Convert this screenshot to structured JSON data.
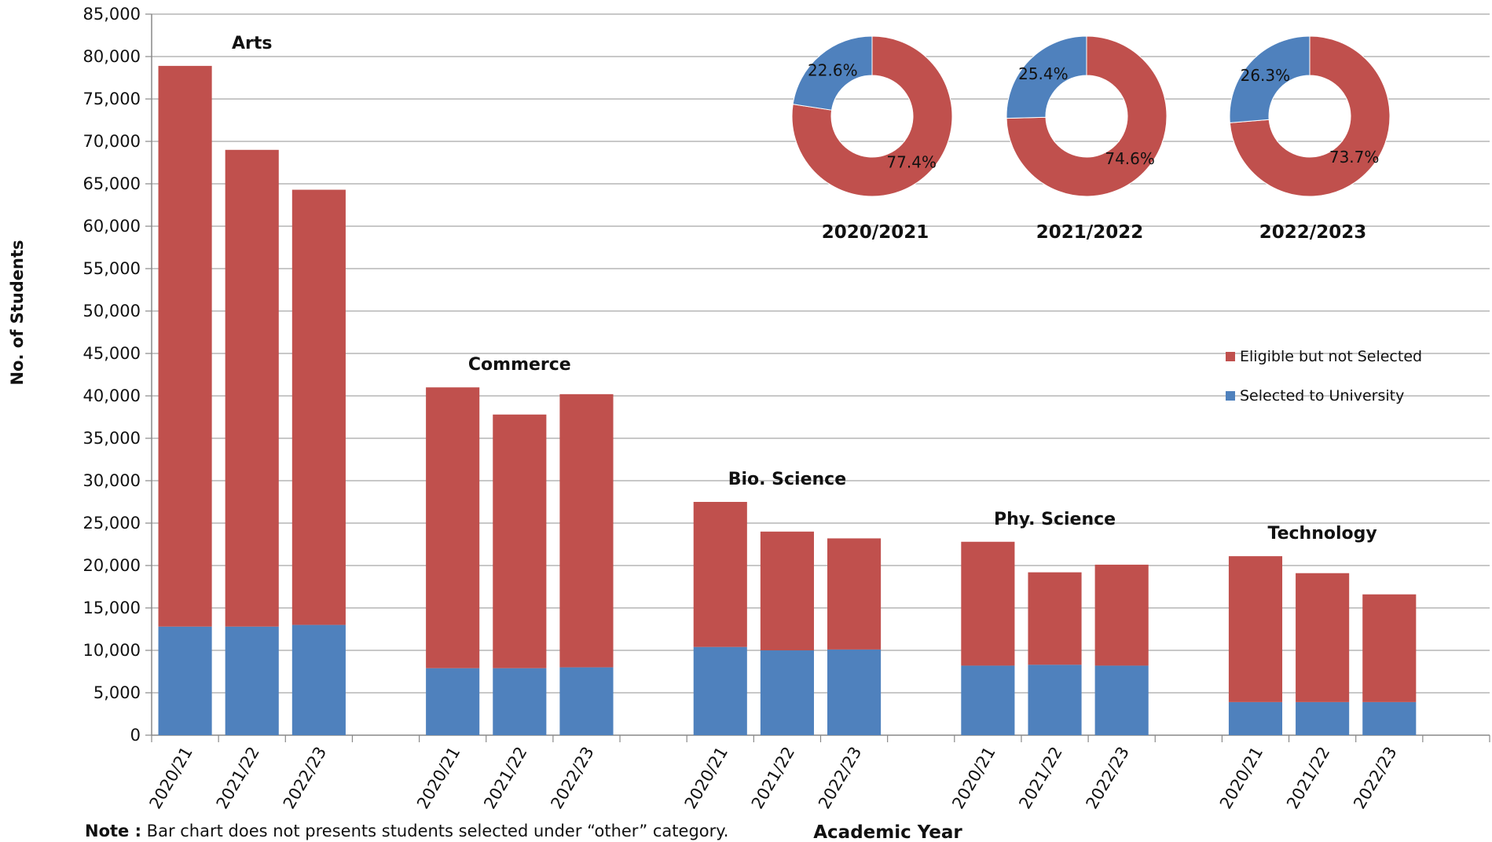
{
  "chart_data": {
    "type": "bar",
    "stacked": true,
    "ylabel": "No. of Students",
    "xlabel": "Academic Year",
    "ylim": [
      0,
      85000
    ],
    "yticks": [
      0,
      5000,
      10000,
      15000,
      20000,
      25000,
      30000,
      35000,
      40000,
      45000,
      50000,
      55000,
      60000,
      65000,
      70000,
      75000,
      80000,
      85000
    ],
    "grid": true,
    "legend_position": "right",
    "series": [
      {
        "name": "Eligible but not Selected",
        "color": "#C0504D"
      },
      {
        "name": "Selected to University",
        "color": "#4F81BD"
      }
    ],
    "groups": [
      {
        "label": "Arts",
        "bars": [
          {
            "year": "2020/21",
            "selected": 12800,
            "eligible_not_selected": 66100,
            "total": 78900
          },
          {
            "year": "2021/22",
            "selected": 12800,
            "eligible_not_selected": 56200,
            "total": 69000
          },
          {
            "year": "2022/23",
            "selected": 13000,
            "eligible_not_selected": 51300,
            "total": 64300
          }
        ]
      },
      {
        "label": "Commerce",
        "bars": [
          {
            "year": "2020/21",
            "selected": 7900,
            "eligible_not_selected": 33100,
            "total": 41000
          },
          {
            "year": "2021/22",
            "selected": 7900,
            "eligible_not_selected": 29900,
            "total": 37800
          },
          {
            "year": "2022/23",
            "selected": 8000,
            "eligible_not_selected": 32200,
            "total": 40200
          }
        ]
      },
      {
        "label": "Bio. Science",
        "bars": [
          {
            "year": "2020/21",
            "selected": 10400,
            "eligible_not_selected": 17100,
            "total": 27500
          },
          {
            "year": "2021/22",
            "selected": 10000,
            "eligible_not_selected": 14000,
            "total": 24000
          },
          {
            "year": "2022/23",
            "selected": 10100,
            "eligible_not_selected": 13100,
            "total": 23200
          }
        ]
      },
      {
        "label": "Phy. Science",
        "bars": [
          {
            "year": "2020/21",
            "selected": 8200,
            "eligible_not_selected": 14600,
            "total": 22800
          },
          {
            "year": "2021/22",
            "selected": 8300,
            "eligible_not_selected": 10900,
            "total": 19200
          },
          {
            "year": "2022/23",
            "selected": 8200,
            "eligible_not_selected": 11900,
            "total": 20100
          }
        ]
      },
      {
        "label": "Technology",
        "bars": [
          {
            "year": "2020/21",
            "selected": 3900,
            "eligible_not_selected": 17200,
            "total": 21100
          },
          {
            "year": "2021/22",
            "selected": 3900,
            "eligible_not_selected": 15200,
            "total": 19100
          },
          {
            "year": "2022/23",
            "selected": 3900,
            "eligible_not_selected": 12700,
            "total": 16600
          }
        ]
      }
    ],
    "donuts": [
      {
        "title": "2020/2021",
        "selected_pct": 22.6,
        "eligible_pct": 77.4,
        "selected_label": "22.6%",
        "eligible_label": "77.4%"
      },
      {
        "title": "2021/2022",
        "selected_pct": 25.4,
        "eligible_pct": 74.6,
        "selected_label": "25.4%",
        "eligible_label": "74.6%"
      },
      {
        "title": "2022/2023",
        "selected_pct": 26.3,
        "eligible_pct": 73.7,
        "selected_label": "26.3%",
        "eligible_label": "73.7%"
      }
    ]
  },
  "note": {
    "prefix": "Note :",
    "text": " Bar chart does not presents students selected under “other” category."
  }
}
